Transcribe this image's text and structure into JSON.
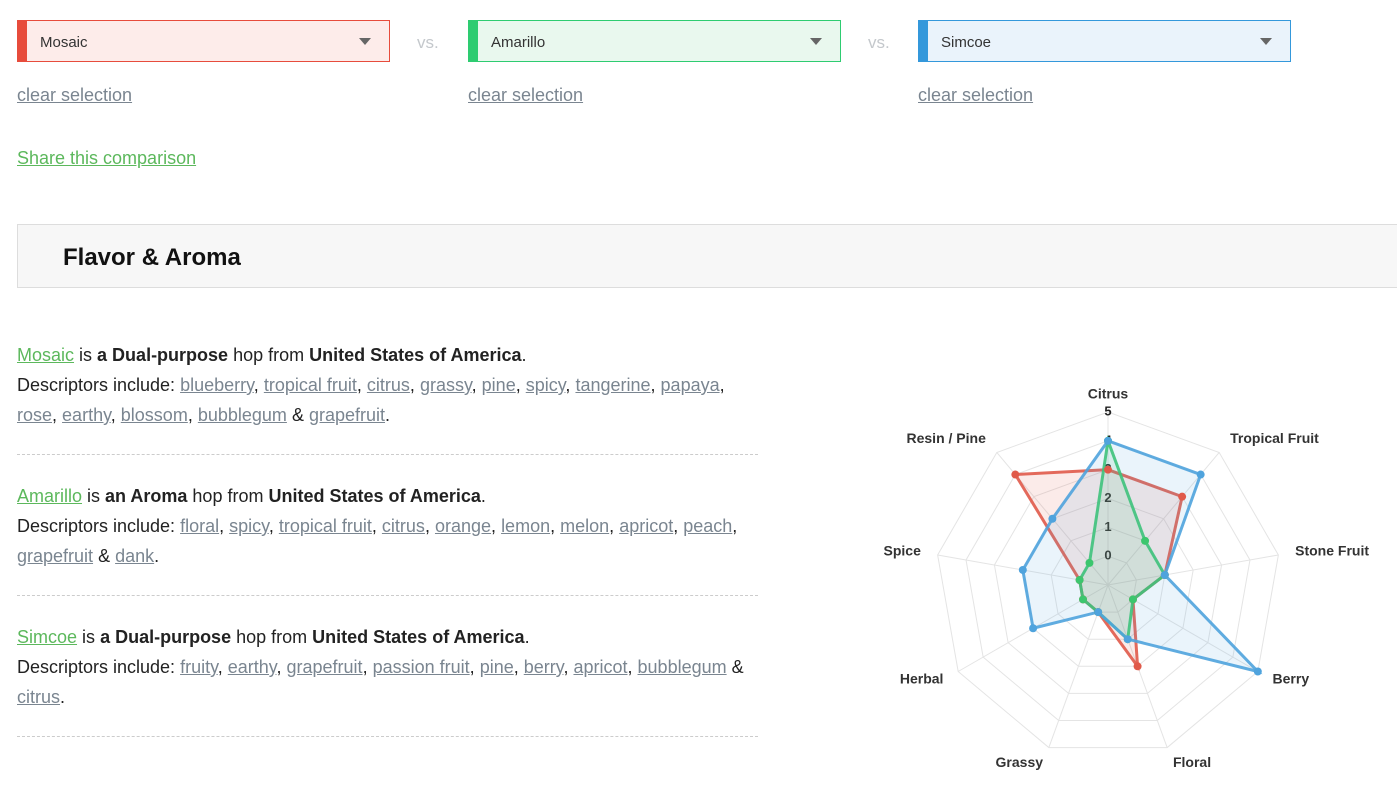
{
  "selectors": [
    {
      "name": "Mosaic",
      "color": "#e74c3c",
      "fill": "#fdecea"
    },
    {
      "name": "Amarillo",
      "color": "#2ecc71",
      "fill": "#e9f8ee"
    },
    {
      "name": "Simcoe",
      "color": "#3498db",
      "fill": "#eaf3fb"
    }
  ],
  "vs": "vs.",
  "clear": "clear selection",
  "share": "Share this comparison",
  "section_title": "Flavor & Aroma",
  "sentence": {
    "is": "is",
    "hop_from": "hop from",
    "end": ".",
    "descriptors_label": "Descriptors include:",
    "separator": ",",
    "last_separator": "&"
  },
  "hops": [
    {
      "name": "Mosaic",
      "kind": "a Dual-purpose",
      "origin": "United States of America",
      "descriptors": [
        "blueberry",
        "tropical fruit",
        "citrus",
        "grassy",
        "pine",
        "spicy",
        "tangerine",
        "papaya",
        "rose",
        "earthy",
        "blossom",
        "bubblegum",
        "grapefruit"
      ]
    },
    {
      "name": "Amarillo",
      "kind": "an Aroma",
      "origin": "United States of America",
      "descriptors": [
        "floral",
        "spicy",
        "tropical fruit",
        "citrus",
        "orange",
        "lemon",
        "melon",
        "apricot",
        "peach",
        "grapefruit",
        "dank"
      ]
    },
    {
      "name": "Simcoe",
      "kind": "a Dual-purpose",
      "origin": "United States of America",
      "descriptors": [
        "fruity",
        "earthy",
        "grapefruit",
        "passion fruit",
        "pine",
        "berry",
        "apricot",
        "bubblegum",
        "citrus"
      ]
    }
  ],
  "chart_data": {
    "type": "radar",
    "categories": [
      "Citrus",
      "Tropical Fruit",
      "Stone Fruit",
      "Berry",
      "Floral",
      "Grassy",
      "Herbal",
      "Spice",
      "Resin / Pine"
    ],
    "series": [
      {
        "color": "#e05a4a",
        "values": [
          3,
          3,
          1,
          0,
          2,
          0,
          0,
          0,
          4
        ]
      },
      {
        "color": "#3cc66e",
        "values": [
          4,
          1,
          1,
          0,
          1,
          0,
          0,
          0,
          0
        ]
      },
      {
        "color": "#4fa3dd",
        "values": [
          4,
          4,
          1,
          5,
          1,
          0,
          2,
          2,
          2
        ]
      }
    ],
    "ylim": [
      -1,
      5
    ],
    "yticks": [
      0,
      1,
      2,
      3,
      4,
      5
    ],
    "grid": true
  }
}
